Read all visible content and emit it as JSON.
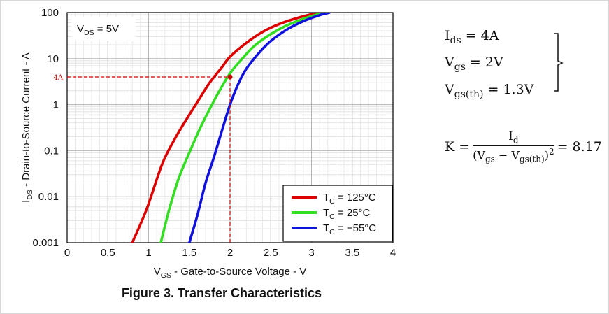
{
  "chart_data": {
    "type": "line",
    "title": "Figure 3. Transfer Characteristics",
    "xlabel": "V_GS - Gate-to-Source Voltage - V",
    "ylabel": "I_DS - Drain-to-Source Current - A",
    "xlim": [
      0,
      4
    ],
    "ylim": [
      0.001,
      100
    ],
    "yscale": "log",
    "x_ticks": [
      "0",
      "0.5",
      "1",
      "1.5",
      "2",
      "2.5",
      "3",
      "3.5",
      "4"
    ],
    "y_ticks": [
      "0.001",
      "0.01",
      "0.1",
      "1",
      "10",
      "100"
    ],
    "grid": true,
    "legend_position": "bottom-right",
    "condition_label": "V_DS = 5V",
    "series": [
      {
        "name": "T_C = 125°C",
        "color": "#dd0000",
        "points": [
          [
            0.8,
            0.001
          ],
          [
            0.97,
            0.005
          ],
          [
            1.12,
            0.03
          ],
          [
            1.2,
            0.07
          ],
          [
            1.35,
            0.22
          ],
          [
            1.5,
            0.6
          ],
          [
            1.63,
            1.4
          ],
          [
            1.75,
            3.0
          ],
          [
            1.9,
            6.5
          ],
          [
            2.0,
            11
          ],
          [
            2.2,
            22
          ],
          [
            2.4,
            38
          ],
          [
            2.6,
            56
          ],
          [
            2.8,
            74
          ],
          [
            3.0,
            92
          ],
          [
            3.1,
            100
          ]
        ]
      },
      {
        "name": "T_C = 25°C",
        "color": "#33dd22",
        "points": [
          [
            1.15,
            0.001
          ],
          [
            1.25,
            0.005
          ],
          [
            1.37,
            0.025
          ],
          [
            1.5,
            0.09
          ],
          [
            1.63,
            0.3
          ],
          [
            1.75,
            0.8
          ],
          [
            1.87,
            2.0
          ],
          [
            2.0,
            4.8
          ],
          [
            2.15,
            10
          ],
          [
            2.3,
            19
          ],
          [
            2.5,
            34
          ],
          [
            2.7,
            53
          ],
          [
            2.9,
            73
          ],
          [
            3.05,
            89
          ],
          [
            3.18,
            100
          ]
        ]
      },
      {
        "name": "T_C = −55°C",
        "color": "#1111dd",
        "points": [
          [
            1.5,
            0.001
          ],
          [
            1.6,
            0.004
          ],
          [
            1.7,
            0.02
          ],
          [
            1.8,
            0.07
          ],
          [
            1.9,
            0.27
          ],
          [
            2.0,
            1.0
          ],
          [
            2.1,
            2.8
          ],
          [
            2.2,
            6.0
          ],
          [
            2.35,
            13
          ],
          [
            2.5,
            24
          ],
          [
            2.7,
            43
          ],
          [
            2.9,
            65
          ],
          [
            3.1,
            88
          ],
          [
            3.22,
            100
          ]
        ]
      }
    ],
    "marker": {
      "x": 2.0,
      "y": 4.0,
      "label": "4A",
      "color": "#cc0000"
    }
  },
  "equations": {
    "ids_label": "I",
    "ids_sub": "ds",
    "ids_value": " = 4A",
    "vgs_label": "V",
    "vgs_sub": "gs",
    "vgs_value": " = 2V",
    "vgsth_label": "V",
    "vgsth_sub": "gs(th)",
    "vgsth_value": " = 1.3V",
    "k_lhs": "K = ",
    "k_num_label": "I",
    "k_num_sub": "d",
    "k_den_open": "(V",
    "k_den_sub1": "gs",
    "k_den_mid": " − V",
    "k_den_sub2": "gs(th)",
    "k_den_close": ")",
    "k_den_exp": "2",
    "k_result": " = 8.17"
  }
}
